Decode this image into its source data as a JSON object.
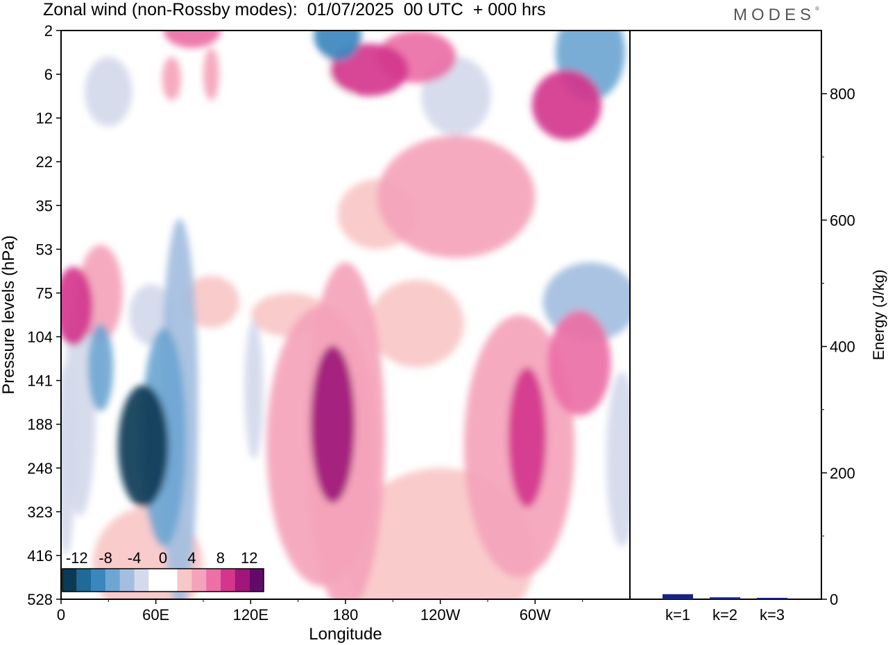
{
  "title": "Zonal wind (non-Rossby modes):  01/07/2025  00 UTC  + 000 hrs",
  "logo_text": "MODES",
  "logo_mark": "®",
  "chart_data": [
    {
      "type": "heatmap",
      "title": "Zonal wind (non-Rossby modes):  01/07/2025  00 UTC  + 000 hrs",
      "xlabel": "Longitude",
      "ylabel": "Pressure levels (hPa)",
      "x_ticks": [
        "0",
        "60E",
        "120E",
        "180",
        "120W",
        "60W"
      ],
      "x_tick_degrees": [
        0,
        60,
        120,
        180,
        240,
        300
      ],
      "xlim": [
        0,
        360
      ],
      "y_ticks": [
        "2",
        "6",
        "12",
        "22",
        "35",
        "53",
        "75",
        "104",
        "141",
        "188",
        "248",
        "323",
        "416",
        "528"
      ],
      "colorbar": {
        "labels": [
          "-12",
          "-8",
          "-4",
          "0",
          "4",
          "8",
          "12"
        ],
        "label_values": [
          -12,
          -8,
          -4,
          0,
          4,
          8,
          12
        ],
        "levels": [
          -14,
          -12,
          -10,
          -8,
          -6,
          -4,
          -2,
          0,
          2,
          4,
          6,
          8,
          10,
          12,
          14
        ],
        "colors": [
          "#0b3a57",
          "#1f6a98",
          "#3a87be",
          "#6ea6d2",
          "#a3bee0",
          "#d4d9ec",
          "#ffffff",
          "#ffffff",
          "#f8c7c7",
          "#f4a3bb",
          "#ec6fa6",
          "#d4368d",
          "#a0167a",
          "#620a6a"
        ]
      },
      "features": [
        {
          "lon": 52,
          "lev": 9.5,
          "value": -14,
          "rx": 16,
          "ry": 1.4
        },
        {
          "lon": 65,
          "lev": 9.3,
          "value": -8,
          "rx": 14,
          "ry": 2.5
        },
        {
          "lon": 75,
          "lev": 8.8,
          "value": -6,
          "rx": 12,
          "ry": 4.5
        },
        {
          "lon": 25,
          "lev": 7.7,
          "value": -8,
          "rx": 8,
          "ry": 1.0
        },
        {
          "lon": 12,
          "lev": 8.6,
          "value": -4,
          "rx": 10,
          "ry": 2.5
        },
        {
          "lon": 3,
          "lev": 9.8,
          "value": -4,
          "rx": 6,
          "ry": 2.2
        },
        {
          "lon": 100,
          "lev": 10.4,
          "value": -2,
          "rx": 22,
          "ry": 2.5
        },
        {
          "lon": 122,
          "lev": 8.2,
          "value": -4,
          "rx": 6,
          "ry": 1.6
        },
        {
          "lon": 57,
          "lev": 6.5,
          "value": -4,
          "rx": 14,
          "ry": 0.7
        },
        {
          "lon": 108,
          "lev": 6.0,
          "value": -2,
          "rx": 16,
          "ry": 0.8
        },
        {
          "lon": 45,
          "lev": 3.2,
          "value": -2,
          "rx": 30,
          "ry": 1.5
        },
        {
          "lon": 155,
          "lev": 1.5,
          "value": -2,
          "rx": 30,
          "ry": 1.0
        },
        {
          "lon": 250,
          "lev": 1.5,
          "value": -4,
          "rx": 22,
          "ry": 0.9
        },
        {
          "lon": 175,
          "lev": 0.1,
          "value": -10,
          "rx": 15,
          "ry": 0.6
        },
        {
          "lon": 335,
          "lev": 0.5,
          "value": -8,
          "rx": 22,
          "ry": 1.1
        },
        {
          "lon": 335,
          "lev": 6.2,
          "value": -6,
          "rx": 30,
          "ry": 0.9
        },
        {
          "lon": 355,
          "lev": 9.8,
          "value": -4,
          "rx": 10,
          "ry": 2.0
        },
        {
          "lon": 30,
          "lev": 1.4,
          "value": -4,
          "rx": 15,
          "ry": 0.8
        },
        {
          "lon": 8,
          "lev": 6.3,
          "value": 8,
          "rx": 12,
          "ry": 0.9
        },
        {
          "lon": 25,
          "lev": 6.0,
          "value": 4,
          "rx": 14,
          "ry": 1.1
        },
        {
          "lon": 172,
          "lev": 9.0,
          "value": 10,
          "rx": 14,
          "ry": 1.8
        },
        {
          "lon": 165,
          "lev": 9.5,
          "value": 4,
          "rx": 35,
          "ry": 3.2
        },
        {
          "lon": 180,
          "lev": 9.3,
          "value": 4,
          "rx": 25,
          "ry": 4.0
        },
        {
          "lon": 295,
          "lev": 9.3,
          "value": 8,
          "rx": 12,
          "ry": 1.6
        },
        {
          "lon": 290,
          "lev": 9.5,
          "value": 4,
          "rx": 35,
          "ry": 3.0
        },
        {
          "lon": 328,
          "lev": 7.6,
          "value": 6,
          "rx": 20,
          "ry": 1.2
        },
        {
          "lon": 240,
          "lev": 12.0,
          "value": 2,
          "rx": 60,
          "ry": 2.0
        },
        {
          "lon": 55,
          "lev": 12.2,
          "value": 2,
          "rx": 35,
          "ry": 1.3
        },
        {
          "lon": 250,
          "lev": 3.8,
          "value": 4,
          "rx": 50,
          "ry": 1.4
        },
        {
          "lon": 320,
          "lev": 1.7,
          "value": 8,
          "rx": 22,
          "ry": 0.8
        },
        {
          "lon": 195,
          "lev": 0.9,
          "value": 8,
          "rx": 25,
          "ry": 0.6
        },
        {
          "lon": 225,
          "lev": 0.6,
          "value": 6,
          "rx": 25,
          "ry": 0.6
        },
        {
          "lon": 200,
          "lev": 4.2,
          "value": 2,
          "rx": 25,
          "ry": 0.8
        },
        {
          "lon": 225,
          "lev": 6.7,
          "value": 2,
          "rx": 30,
          "ry": 1.0
        },
        {
          "lon": 83,
          "lev": 0.0,
          "value": 6,
          "rx": 18,
          "ry": 0.4
        },
        {
          "lon": 95,
          "lev": 6.2,
          "value": 2,
          "rx": 18,
          "ry": 0.6
        },
        {
          "lon": 145,
          "lev": 6.5,
          "value": 2,
          "rx": 25,
          "ry": 0.5
        },
        {
          "lon": 70,
          "lev": 1.1,
          "value": 4,
          "rx": 6,
          "ry": 0.5
        },
        {
          "lon": 95,
          "lev": 1.0,
          "value": 4,
          "rx": 5,
          "ry": 0.6
        }
      ]
    },
    {
      "type": "bar",
      "categories": [
        "k=1",
        "k=2",
        "k=3"
      ],
      "values": [
        8,
        3,
        2
      ],
      "ylabel": "Energy (J/kg)",
      "ylim": [
        0,
        900
      ],
      "y_ticks": [
        0,
        200,
        400,
        600,
        800
      ],
      "bar_color": "#1a237e"
    }
  ]
}
